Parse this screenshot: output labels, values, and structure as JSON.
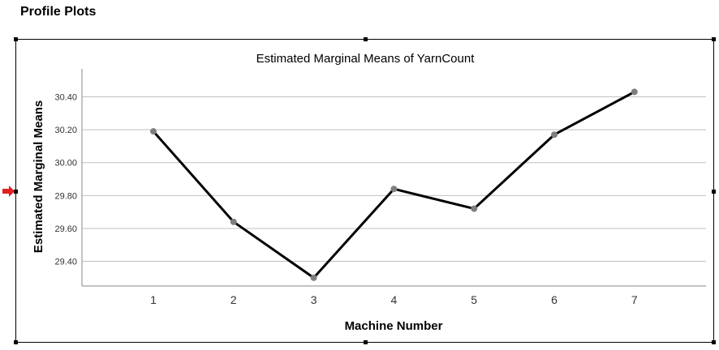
{
  "section_title": "Profile Plots",
  "chart_data": {
    "type": "line",
    "title": "Estimated Marginal Means of YarnCount",
    "xlabel": "Machine Number",
    "ylabel": "Estimated Marginal Means",
    "categories": [
      "1",
      "2",
      "3",
      "4",
      "5",
      "6",
      "7"
    ],
    "series": [
      {
        "values": [
          30.19,
          29.64,
          29.3,
          29.84,
          29.72,
          30.17,
          30.43
        ]
      }
    ],
    "ylim": [
      29.25,
      30.57
    ],
    "yticks": [
      "29.40",
      "29.60",
      "29.80",
      "30.00",
      "30.20",
      "30.40"
    ],
    "ytick_values": [
      29.4,
      29.6,
      29.8,
      30.0,
      30.2,
      30.4
    ],
    "grid": true,
    "line_color": "#000000",
    "marker_color": "#7f7f7f",
    "grid_color": "#c0c0c0"
  }
}
